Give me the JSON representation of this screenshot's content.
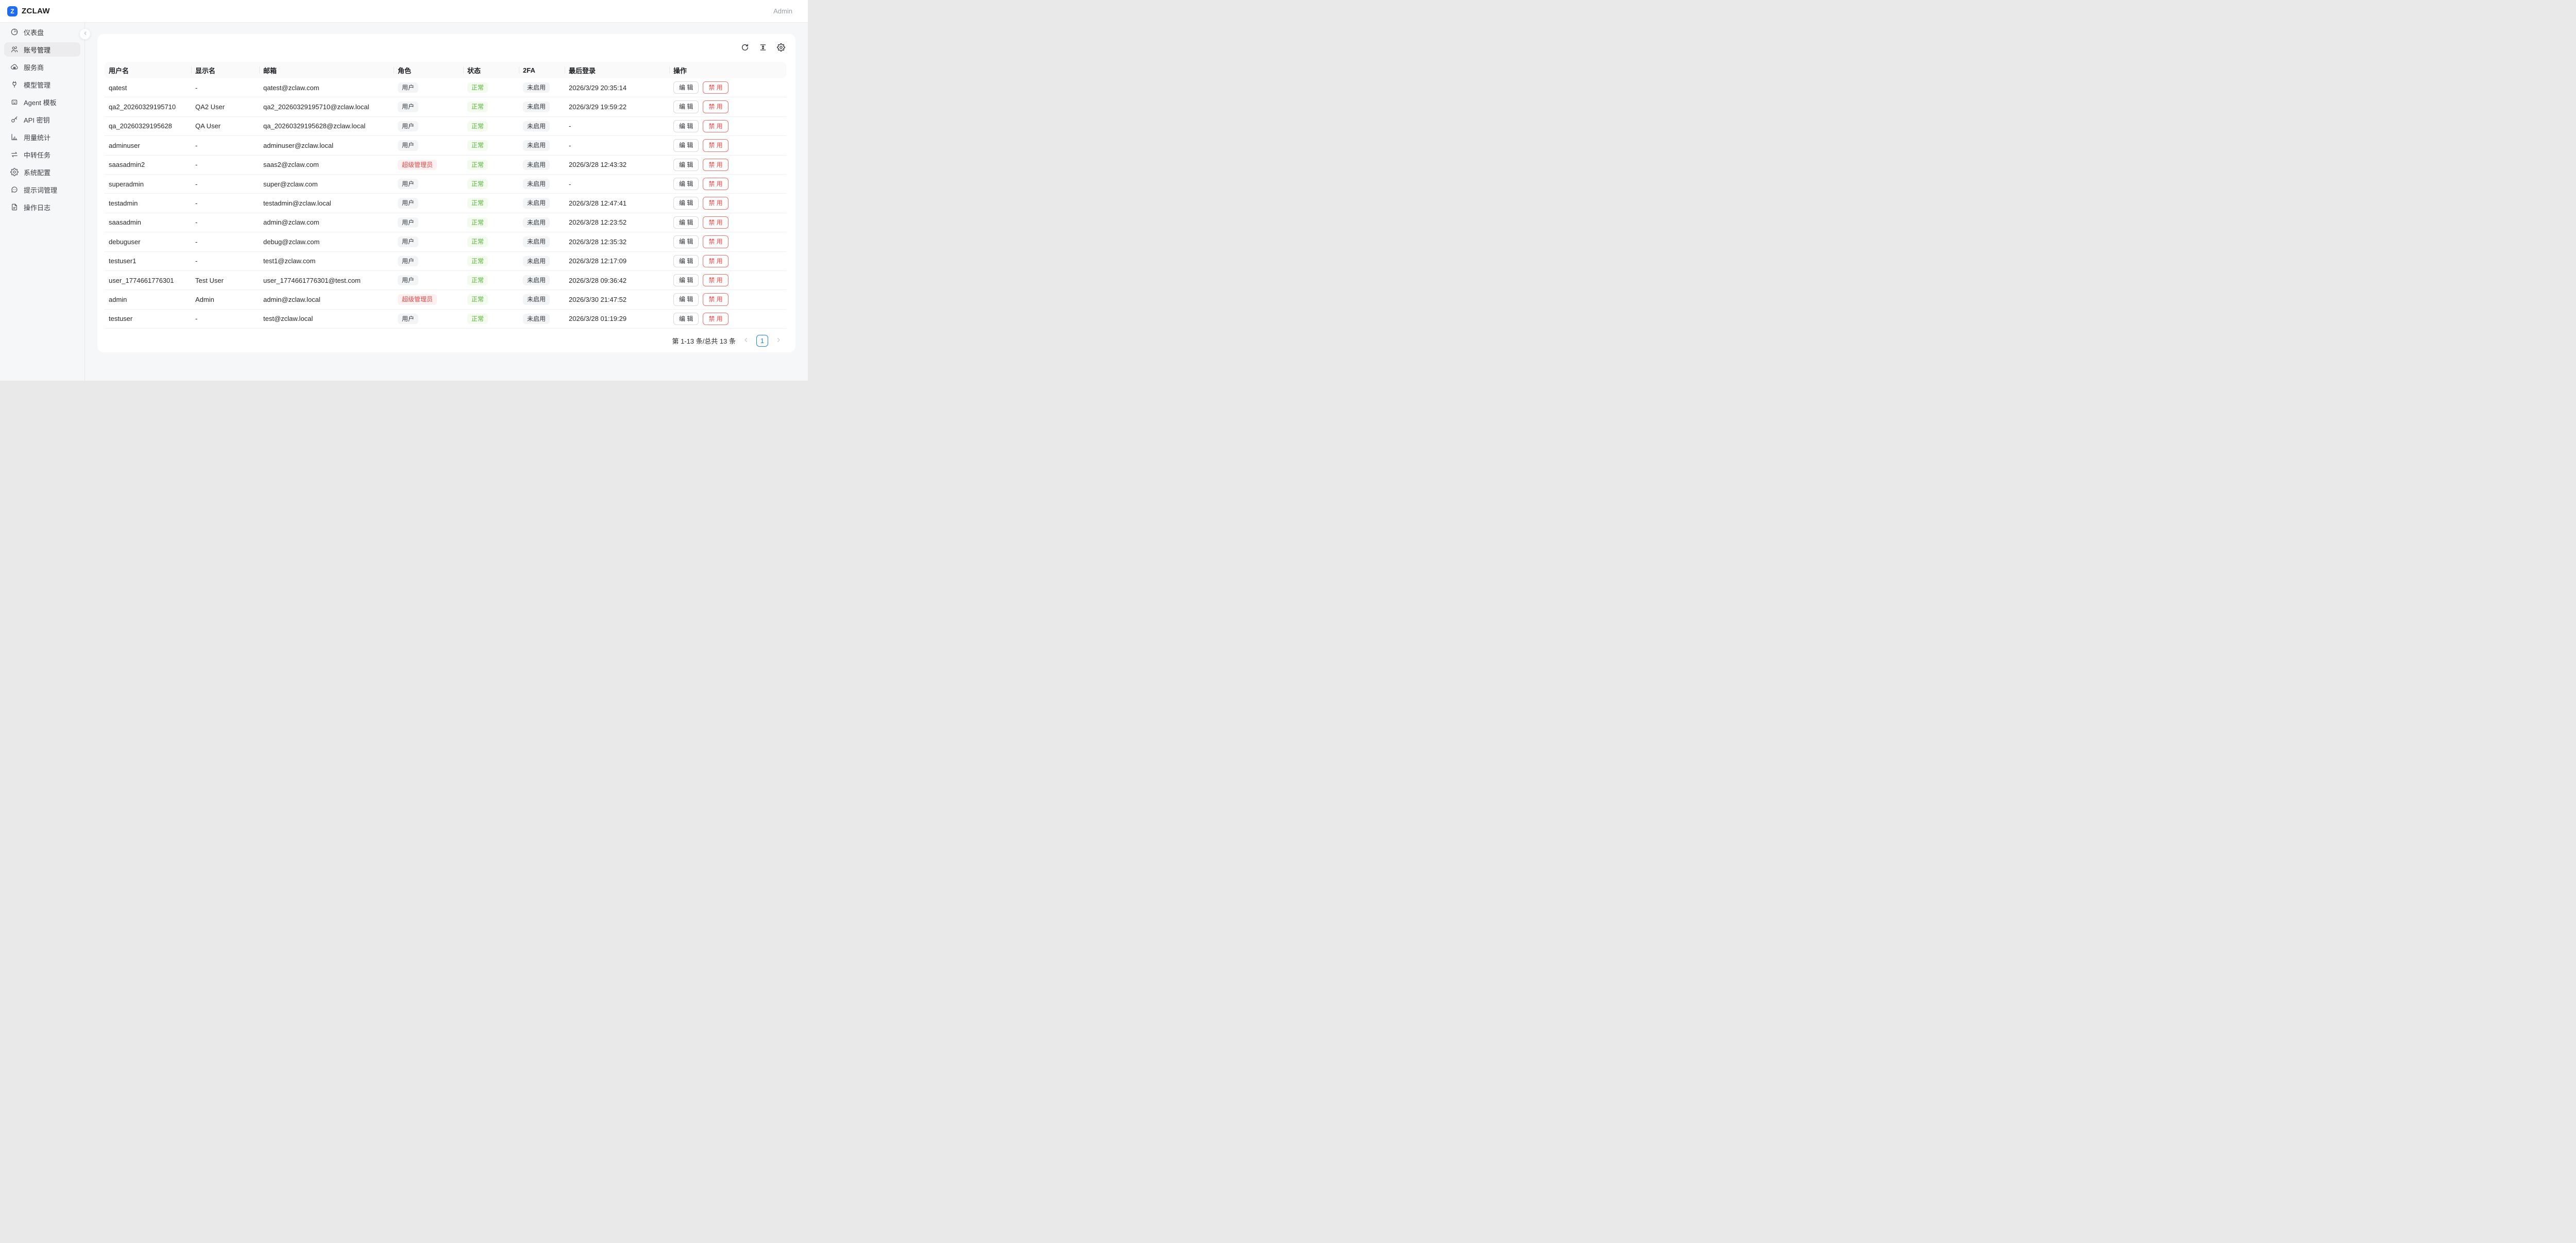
{
  "header": {
    "logo_text": "Z",
    "brand": "ZCLAW",
    "account_label": "Admin"
  },
  "sidebar": {
    "items": [
      {
        "key": "dashboard",
        "label": "仪表盘",
        "icon": "gauge-icon",
        "active": false
      },
      {
        "key": "accounts",
        "label": "账号管理",
        "icon": "users-icon",
        "active": true
      },
      {
        "key": "providers",
        "label": "服务商",
        "icon": "cloud-icon",
        "active": false
      },
      {
        "key": "models",
        "label": "模型管理",
        "icon": "plug-icon",
        "active": false
      },
      {
        "key": "agent-templates",
        "label": "Agent 模板",
        "icon": "bot-icon",
        "active": false
      },
      {
        "key": "api-keys",
        "label": "API 密钥",
        "icon": "key-icon",
        "active": false
      },
      {
        "key": "usage-stats",
        "label": "用量统计",
        "icon": "bar-chart-icon",
        "active": false
      },
      {
        "key": "relay-tasks",
        "label": "中转任务",
        "icon": "swap-icon",
        "active": false
      },
      {
        "key": "system-config",
        "label": "系统配置",
        "icon": "gear-icon",
        "active": false
      },
      {
        "key": "prompts",
        "label": "提示词管理",
        "icon": "chat-icon",
        "active": false
      },
      {
        "key": "operation-logs",
        "label": "操作日志",
        "icon": "document-icon",
        "active": false
      }
    ]
  },
  "toolbar": {
    "buttons": [
      {
        "key": "refresh",
        "icon": "refresh-icon"
      },
      {
        "key": "row-height",
        "icon": "row-height-icon"
      },
      {
        "key": "settings",
        "icon": "gear-icon"
      }
    ]
  },
  "table": {
    "columns": [
      {
        "key": "username",
        "label": "用户名"
      },
      {
        "key": "display_name",
        "label": "显示名"
      },
      {
        "key": "email",
        "label": "邮箱"
      },
      {
        "key": "role",
        "label": "角色"
      },
      {
        "key": "status",
        "label": "状态"
      },
      {
        "key": "twofa",
        "label": "2FA"
      },
      {
        "key": "last_login",
        "label": "最后登录"
      },
      {
        "key": "actions",
        "label": "操作"
      }
    ],
    "actions": {
      "edit": "编 辑",
      "disable": "禁 用"
    },
    "rows": [
      {
        "username": "qatest",
        "display_name": "-",
        "email": "qatest@zclaw.com",
        "role": "用户",
        "role_variant": "default",
        "status": "正常",
        "twofa": "未启用",
        "last_login": "2026/3/29 20:35:14"
      },
      {
        "username": "qa2_20260329195710",
        "display_name": "QA2 User",
        "email": "qa2_20260329195710@zclaw.local",
        "role": "用户",
        "role_variant": "default",
        "status": "正常",
        "twofa": "未启用",
        "last_login": "2026/3/29 19:59:22"
      },
      {
        "username": "qa_20260329195628",
        "display_name": "QA User",
        "email": "qa_20260329195628@zclaw.local",
        "role": "用户",
        "role_variant": "default",
        "status": "正常",
        "twofa": "未启用",
        "last_login": "-"
      },
      {
        "username": "adminuser",
        "display_name": "-",
        "email": "adminuser@zclaw.local",
        "role": "用户",
        "role_variant": "default",
        "status": "正常",
        "twofa": "未启用",
        "last_login": "-"
      },
      {
        "username": "saasadmin2",
        "display_name": "-",
        "email": "saas2@zclaw.com",
        "role": "超级管理员",
        "role_variant": "danger",
        "status": "正常",
        "twofa": "未启用",
        "last_login": "2026/3/28 12:43:32"
      },
      {
        "username": "superadmin",
        "display_name": "-",
        "email": "super@zclaw.com",
        "role": "用户",
        "role_variant": "default",
        "status": "正常",
        "twofa": "未启用",
        "last_login": "-"
      },
      {
        "username": "testadmin",
        "display_name": "-",
        "email": "testadmin@zclaw.local",
        "role": "用户",
        "role_variant": "default",
        "status": "正常",
        "twofa": "未启用",
        "last_login": "2026/3/28 12:47:41"
      },
      {
        "username": "saasadmin",
        "display_name": "-",
        "email": "admin@zclaw.com",
        "role": "用户",
        "role_variant": "default",
        "status": "正常",
        "twofa": "未启用",
        "last_login": "2026/3/28 12:23:52"
      },
      {
        "username": "debuguser",
        "display_name": "-",
        "email": "debug@zclaw.com",
        "role": "用户",
        "role_variant": "default",
        "status": "正常",
        "twofa": "未启用",
        "last_login": "2026/3/28 12:35:32"
      },
      {
        "username": "testuser1",
        "display_name": "-",
        "email": "test1@zclaw.com",
        "role": "用户",
        "role_variant": "default",
        "status": "正常",
        "twofa": "未启用",
        "last_login": "2026/3/28 12:17:09"
      },
      {
        "username": "user_1774661776301",
        "display_name": "Test User",
        "email": "user_1774661776301@test.com",
        "role": "用户",
        "role_variant": "default",
        "status": "正常",
        "twofa": "未启用",
        "last_login": "2026/3/28 09:36:42"
      },
      {
        "username": "admin",
        "display_name": "Admin",
        "email": "admin@zclaw.local",
        "role": "超级管理员",
        "role_variant": "danger",
        "status": "正常",
        "twofa": "未启用",
        "last_login": "2026/3/30 21:47:52"
      },
      {
        "username": "testuser",
        "display_name": "-",
        "email": "test@zclaw.local",
        "role": "用户",
        "role_variant": "default",
        "status": "正常",
        "twofa": "未启用",
        "last_login": "2026/3/28 01:19:29"
      }
    ]
  },
  "pagination": {
    "summary": "第 1-13 条/总共 13 条",
    "current_page": "1"
  },
  "colors": {
    "brand_blue": "#1d6cf2",
    "accent_blue": "#2080f0",
    "success_text": "#55b235",
    "success_bg": "#f2fbee",
    "danger_text": "#ee4848",
    "danger_bg": "#fdf0f0",
    "badge_bg": "#f3f4f5"
  }
}
